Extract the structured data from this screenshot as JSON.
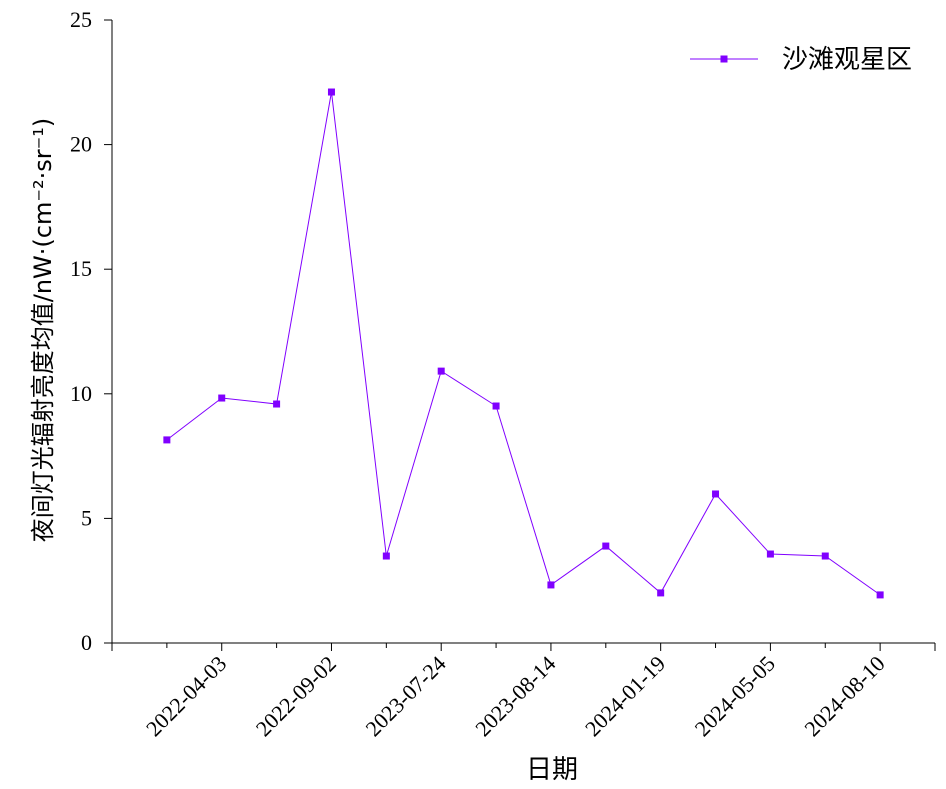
{
  "chart_data": {
    "type": "line",
    "x_label": "日期",
    "y_label": "夜间灯光辐射亮度均值/nW·(cm⁻²·sr⁻¹)",
    "categories": [
      null,
      "2022-04-03",
      null,
      "2022-09-02",
      null,
      "2023-07-24",
      null,
      "2023-08-14",
      null,
      "2024-01-19",
      null,
      "2024-05-05",
      null,
      "2024-08-10"
    ],
    "series": [
      {
        "name": "沙滩观星区",
        "color": "#8000ff",
        "values": [
          8.15,
          9.83,
          9.59,
          22.11,
          3.49,
          10.91,
          9.51,
          2.33,
          3.89,
          2.01,
          5.98,
          3.57,
          3.49,
          1.93
        ]
      }
    ],
    "ylim": [
      0,
      25
    ],
    "yticks": [
      0,
      5,
      10,
      15,
      20,
      25
    ],
    "legend": "top-right"
  }
}
